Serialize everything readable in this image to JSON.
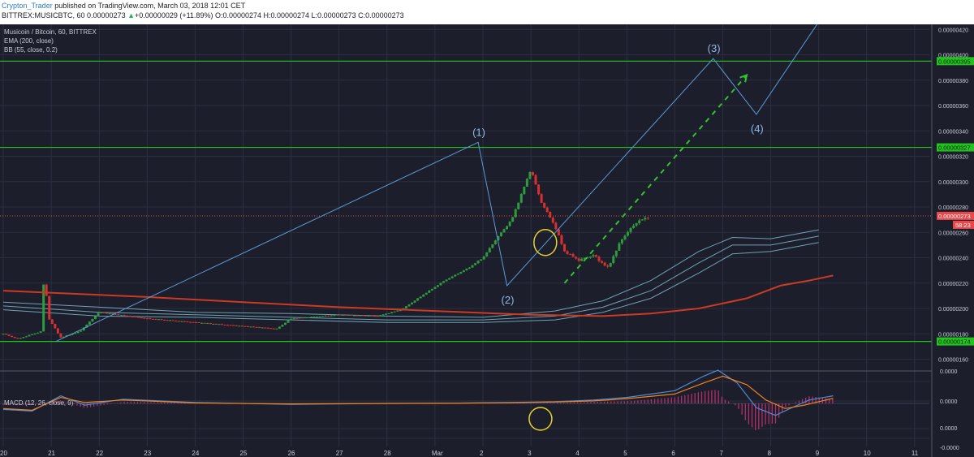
{
  "header": {
    "author": "Crypton_Trader",
    "published": " published on TradingView.com, March 03, 2018 12:01 CET",
    "ticker": "BITTREX:MUSICBTC, 60 ",
    "last": "0.00000273",
    "arrow": "▲",
    "change": "+0.00000029 (+11.89%)",
    "ohlc": " O:0.00000274 H:0.00000274 L:0.00000273 C:0.00000273"
  },
  "legend": {
    "symbol": "Musicoin / Bitcoin, 60, BITTREX",
    "ema": "EMA (200, close)",
    "bb": "BB (55, close, 0.2)",
    "macd": "MACD (12, 26, close, 9)"
  },
  "colors": {
    "background": "#1c1e2b",
    "grid": "#2b2f40",
    "up": "#2e9b3d",
    "down": "#d9302f",
    "ema": "#cc3a24",
    "bb": "#6fa2b3",
    "wave": "#5b9bd5",
    "hline": "#22c31e",
    "projection": "#34c22d",
    "macd_line": "#4f8bd5",
    "signal_line": "#f08020",
    "hist": "#b0306a",
    "circle": "#e6d42b",
    "price_tag": "#e8484a"
  },
  "chart_data": [
    {
      "type": "candlestick",
      "x_ticks": [
        "20",
        "21",
        "22",
        "23",
        "24",
        "25",
        "26",
        "27",
        "28",
        "Mar",
        "2",
        "3",
        "4",
        "5",
        "6",
        "7",
        "8",
        "9",
        "10",
        "11"
      ],
      "y_ticks": [
        "0.00000420",
        "0.00000400",
        "0.00000380",
        "0.00000360",
        "0.00000340",
        "0.00000320",
        "0.00000300",
        "0.00000280",
        "0.00000260",
        "0.00000240",
        "0.00000220",
        "0.00000200",
        "0.00000180",
        "0.00000160"
      ],
      "ylim": [
        1.52e-06,
        4.24e-06
      ],
      "horizontal_levels": [
        {
          "value": 3.95e-06,
          "label": "0.00000395"
        },
        {
          "value": 3.27e-06,
          "label": "0.00000327"
        },
        {
          "value": 1.74e-06,
          "label": "0.00000174"
        }
      ],
      "current_price": {
        "value": 2.73e-06,
        "label": "0.00000273",
        "countdown": "58:23"
      },
      "wave_labels": [
        "(1)",
        "(2)",
        "(3)",
        "(4)"
      ],
      "wave_points": [
        {
          "x": "21.1",
          "y": 1.74e-06
        },
        {
          "x": "Mar 1.9",
          "y": 3.31e-06
        },
        {
          "x": "Mar 2.5",
          "y": 2.18e-06
        },
        {
          "x": "Mar 6.8",
          "y": 3.97e-06
        },
        {
          "x": "Mar 7.7",
          "y": 3.53e-06
        },
        {
          "x": "Mar 9.0",
          "y": 4.26e-06
        }
      ],
      "projection_arrow": {
        "from": {
          "x": "Mar 3.7",
          "y": 2.2e-06
        },
        "to": {
          "x": "Mar 7.5",
          "y": 3.84e-06
        }
      },
      "ema200": [
        [
          0,
          2.14e-06
        ],
        [
          3,
          2.09e-06
        ],
        [
          5,
          2.05e-06
        ],
        [
          7,
          2.01e-06
        ],
        [
          9,
          1.98e-06
        ],
        [
          11,
          1.95e-06
        ],
        [
          12.5,
          1.94e-06
        ],
        [
          13.5,
          1.96e-06
        ],
        [
          14.5,
          2e-06
        ],
        [
          15.5,
          2.08e-06
        ],
        [
          16.2,
          2.18e-06
        ],
        [
          16.8,
          2.22e-06
        ],
        [
          17.3,
          2.26e-06
        ]
      ],
      "bb_upper": [
        [
          0,
          2.05e-06
        ],
        [
          2,
          2.01e-06
        ],
        [
          4,
          1.97e-06
        ],
        [
          6,
          1.96e-06
        ],
        [
          8,
          1.94e-06
        ],
        [
          10,
          1.93e-06
        ],
        [
          11.5,
          1.98e-06
        ],
        [
          12.5,
          2.06e-06
        ],
        [
          13.5,
          2.22e-06
        ],
        [
          14.5,
          2.45e-06
        ],
        [
          15.2,
          2.56e-06
        ],
        [
          16,
          2.55e-06
        ],
        [
          17,
          2.62e-06
        ]
      ],
      "bb_middle": [
        [
          0,
          2.02e-06
        ],
        [
          2,
          1.97e-06
        ],
        [
          4,
          1.95e-06
        ],
        [
          6,
          1.93e-06
        ],
        [
          8,
          1.91e-06
        ],
        [
          10,
          1.91e-06
        ],
        [
          11.5,
          1.94e-06
        ],
        [
          12.5,
          2.01e-06
        ],
        [
          13.5,
          2.14e-06
        ],
        [
          14.5,
          2.36e-06
        ],
        [
          15.2,
          2.5e-06
        ],
        [
          16,
          2.5e-06
        ],
        [
          17,
          2.57e-06
        ]
      ],
      "bb_lower": [
        [
          0,
          1.99e-06
        ],
        [
          2,
          1.94e-06
        ],
        [
          4,
          1.93e-06
        ],
        [
          6,
          1.91e-06
        ],
        [
          8,
          1.89e-06
        ],
        [
          10,
          1.89e-06
        ],
        [
          11.5,
          1.91e-06
        ],
        [
          12.5,
          1.97e-06
        ],
        [
          13.5,
          2.08e-06
        ],
        [
          14.5,
          2.28e-06
        ],
        [
          15.2,
          2.43e-06
        ],
        [
          16,
          2.45e-06
        ],
        [
          17,
          2.52e-06
        ]
      ]
    },
    {
      "type": "macd",
      "y_ticks": [
        "0.0000",
        "0.0000",
        "0.0000",
        "-0.0000"
      ],
      "macd_line": [
        [
          0,
          -0.35
        ],
        [
          0.6,
          -0.45
        ],
        [
          1.2,
          0.45
        ],
        [
          1.7,
          -0.1
        ],
        [
          2.5,
          0.25
        ],
        [
          4,
          0.05
        ],
        [
          6,
          -0.05
        ],
        [
          8,
          0.0
        ],
        [
          9.5,
          0.02
        ],
        [
          10.5,
          0.05
        ],
        [
          11.5,
          0.1
        ],
        [
          12.3,
          0.2
        ],
        [
          13,
          0.35
        ],
        [
          14,
          0.75
        ],
        [
          14.6,
          1.6
        ],
        [
          14.9,
          1.95
        ],
        [
          15.3,
          1.2
        ],
        [
          15.7,
          -0.25
        ],
        [
          16.1,
          -0.7
        ],
        [
          16.4,
          -0.3
        ],
        [
          16.8,
          0.2
        ],
        [
          17.3,
          0.45
        ]
      ],
      "signal_line": [
        [
          0,
          -0.3
        ],
        [
          0.6,
          -0.4
        ],
        [
          1.2,
          0.35
        ],
        [
          1.7,
          0.05
        ],
        [
          2.5,
          0.2
        ],
        [
          4,
          0.03
        ],
        [
          6,
          -0.03
        ],
        [
          8,
          0.0
        ],
        [
          9.5,
          0.02
        ],
        [
          10.5,
          0.04
        ],
        [
          11.5,
          0.08
        ],
        [
          12.3,
          0.15
        ],
        [
          13,
          0.28
        ],
        [
          14,
          0.55
        ],
        [
          14.6,
          1.2
        ],
        [
          15.0,
          1.6
        ],
        [
          15.5,
          1.1
        ],
        [
          15.9,
          0.2
        ],
        [
          16.3,
          -0.3
        ],
        [
          16.7,
          -0.1
        ],
        [
          17.3,
          0.3
        ]
      ]
    }
  ]
}
